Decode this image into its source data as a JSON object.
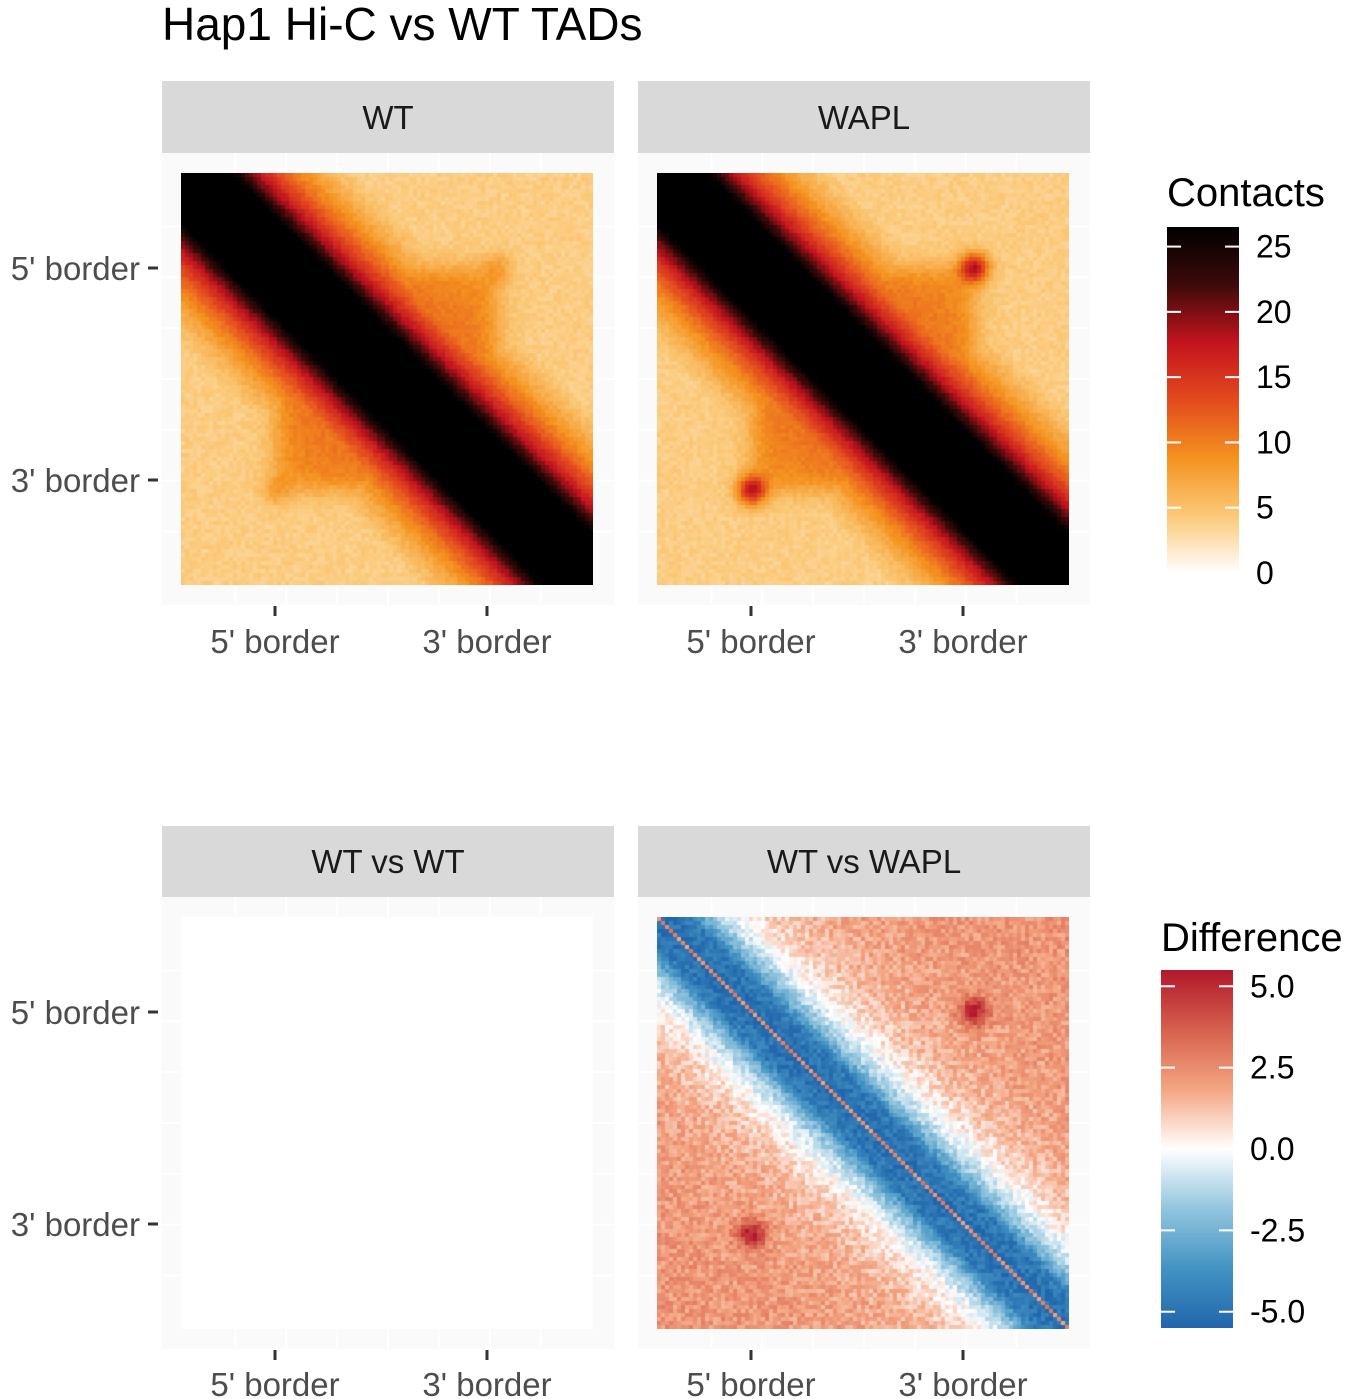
{
  "chart_data": {
    "type": "heatmap",
    "title": "Hap1 Hi-C vs WT TADs",
    "facet_rows": [
      {
        "panels": [
          {
            "label": "WT",
            "kind": "contacts",
            "ref_corner_peak": 0.0
          },
          {
            "label": "WAPL",
            "kind": "contacts",
            "ref_corner_peak": 1.0
          }
        ],
        "legend": {
          "title": "Contacts",
          "range": [
            0,
            26.5
          ],
          "ticks": [
            0,
            5,
            10,
            15,
            20,
            25
          ],
          "tick_labels": [
            "0",
            "5",
            "10",
            "15",
            "20",
            "25"
          ],
          "colors": [
            "#ffffff",
            "#fbc877",
            "#f4921f",
            "#e34a1e",
            "#c3141e",
            "#3d0a0a",
            "#000000"
          ]
        }
      },
      {
        "panels": [
          {
            "label": "WT vs WT",
            "kind": "blank"
          },
          {
            "label": "WT vs WAPL",
            "kind": "difference"
          }
        ],
        "legend": {
          "title": "Difference",
          "range": [
            -5.5,
            5.5
          ],
          "ticks": [
            5.0,
            2.5,
            0.0,
            -2.5,
            -5.0
          ],
          "tick_labels": [
            "5.0",
            "2.5",
            "0.0",
            "-2.5",
            "-5.0"
          ],
          "colors": [
            "#2166ac",
            "#4393c3",
            "#92c5de",
            "#ffffff",
            "#f4a582",
            "#d6604d",
            "#b2182b"
          ]
        }
      }
    ],
    "x_axis": {
      "tick_labels": [
        "5' border",
        "3' border"
      ],
      "tick_positions": [
        -1,
        1
      ],
      "range": [
        -2,
        2
      ]
    },
    "y_axis": {
      "tick_labels": [
        "5' border",
        "3' border"
      ],
      "tick_positions": [
        -1,
        1
      ],
      "range": [
        -2,
        2
      ]
    },
    "grid": true
  }
}
